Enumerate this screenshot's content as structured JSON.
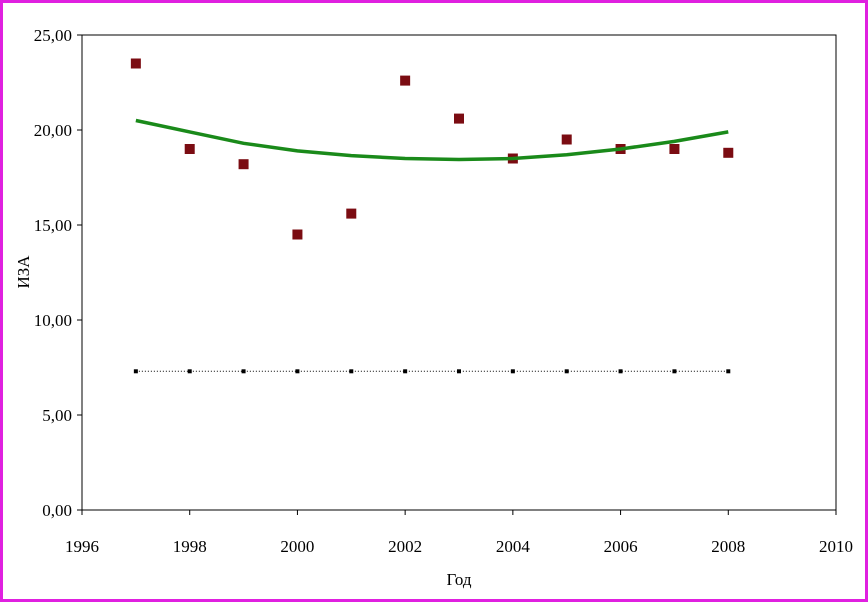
{
  "chart_data": {
    "type": "scatter",
    "x_label": "Год",
    "y_label": "ИЗА",
    "x": [
      1997,
      1998,
      1999,
      2000,
      2001,
      2002,
      2003,
      2004,
      2005,
      2006,
      2007,
      2008
    ],
    "series": [
      {
        "kind": "points",
        "color": "#7b0c12",
        "values": [
          23.5,
          19.0,
          18.2,
          14.5,
          15.6,
          22.6,
          20.6,
          18.5,
          19.5,
          19.0,
          19.0,
          18.8
        ]
      },
      {
        "kind": "trend",
        "color": "#1a8a1a",
        "values": [
          20.5,
          19.9,
          19.3,
          18.9,
          18.65,
          18.5,
          18.45,
          18.5,
          18.7,
          19.0,
          19.4,
          19.9
        ]
      },
      {
        "kind": "dotted",
        "color": "#000000",
        "values": [
          7.3,
          7.3,
          7.3,
          7.3,
          7.3,
          7.3,
          7.3,
          7.3,
          7.3,
          7.3,
          7.3,
          7.3
        ]
      }
    ],
    "xlim": [
      1996,
      2010
    ],
    "xticks": [
      1996,
      1998,
      2000,
      2002,
      2004,
      2006,
      2008,
      2010
    ],
    "ylim": [
      0,
      25
    ],
    "yticks": [
      {
        "value": 0,
        "label": "0,00"
      },
      {
        "value": 5,
        "label": "5,00"
      },
      {
        "value": 10,
        "label": "10,00"
      },
      {
        "value": 15,
        "label": "15,00"
      },
      {
        "value": 20,
        "label": "20,00"
      },
      {
        "value": 25,
        "label": "25,00"
      }
    ]
  }
}
